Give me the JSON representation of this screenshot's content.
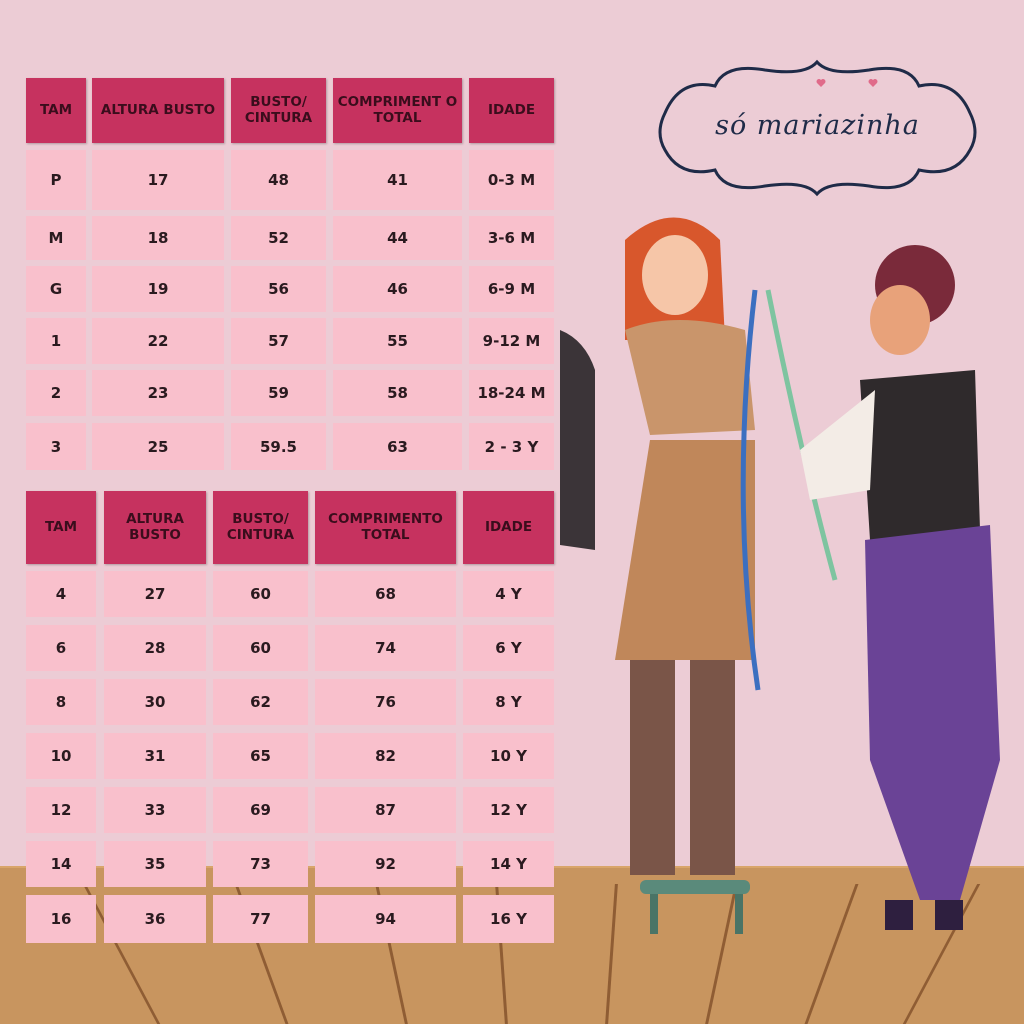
{
  "brand": {
    "logo_text": "só mariazinha",
    "heart_color": "#e06b8a",
    "ink_color": "#1f2b48"
  },
  "colors": {
    "background": "#ecccd5",
    "header": "#c6325f",
    "cell": "#f9c0cc",
    "floor": "#c8955f"
  },
  "table1": {
    "headers": [
      "TAM",
      "ALTURA BUSTO",
      "BUSTO/ CINTURA",
      "COMPRIMENT O TOTAL",
      "IDADE"
    ],
    "rows": [
      [
        "P",
        "17",
        "48",
        "41",
        "0-3 M"
      ],
      [
        "M",
        "18",
        "52",
        "44",
        "3-6 M"
      ],
      [
        "G",
        "19",
        "56",
        "46",
        "6-9 M"
      ],
      [
        "1",
        "22",
        "57",
        "55",
        "9-12 M"
      ],
      [
        "2",
        "23",
        "59",
        "58",
        "18-24 M"
      ],
      [
        "3",
        "25",
        "59.5",
        "63",
        "2 - 3 Y"
      ]
    ]
  },
  "table2": {
    "headers": [
      "TAM",
      "ALTURA BUSTO",
      "BUSTO/ CINTURA",
      "COMPRIMENTO TOTAL",
      "IDADE"
    ],
    "rows": [
      [
        "4",
        "27",
        "60",
        "68",
        "4 Y"
      ],
      [
        "6",
        "28",
        "60",
        "74",
        "6 Y"
      ],
      [
        "8",
        "30",
        "62",
        "76",
        "8 Y"
      ],
      [
        "10",
        "31",
        "65",
        "82",
        "10 Y"
      ],
      [
        "12",
        "33",
        "69",
        "87",
        "12 Y"
      ],
      [
        "14",
        "35",
        "73",
        "92",
        "14 Y"
      ],
      [
        "16",
        "36",
        "77",
        "94",
        "16 Y"
      ]
    ]
  }
}
